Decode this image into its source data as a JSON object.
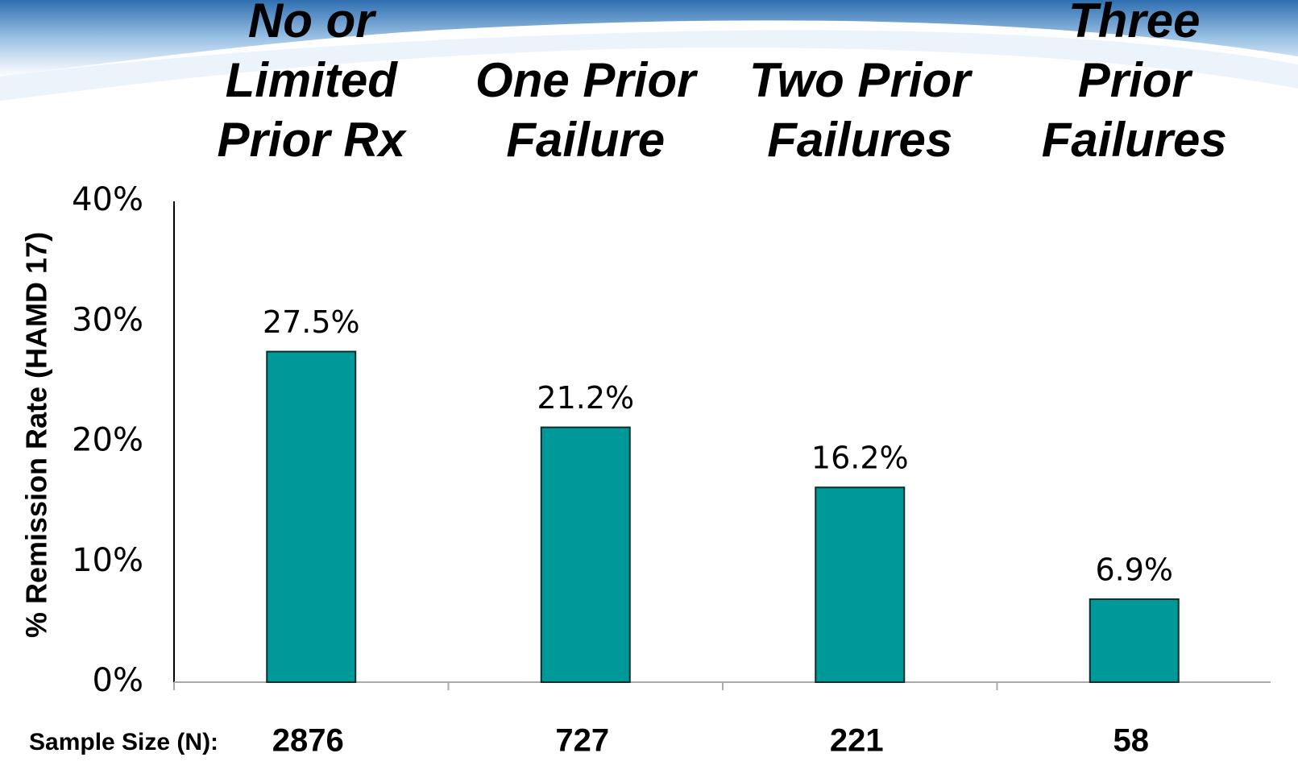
{
  "chart_data": {
    "type": "bar",
    "y_label": "% Remission Rate (HAMD 17)",
    "categories": [
      "No or Limited Prior Rx",
      "One Prior Failure",
      "Two Prior Failures",
      "Three Prior Failures"
    ],
    "values": [
      27.5,
      21.2,
      16.2,
      6.9
    ],
    "value_labels": [
      "27.5%",
      "21.2%",
      "16.2%",
      "6.9%"
    ],
    "color": "#009999",
    "ylim": [
      0,
      40
    ],
    "yticks": [
      {
        "value": 0,
        "label": "0%"
      },
      {
        "value": 10,
        "label": "10%"
      },
      {
        "value": 20,
        "label": "20%"
      },
      {
        "value": 30,
        "label": "30%"
      },
      {
        "value": 40,
        "label": "40%"
      }
    ],
    "grid": false,
    "sample_size": {
      "label": "Sample Size (N):",
      "values": [
        2876,
        727,
        221,
        58
      ]
    }
  }
}
